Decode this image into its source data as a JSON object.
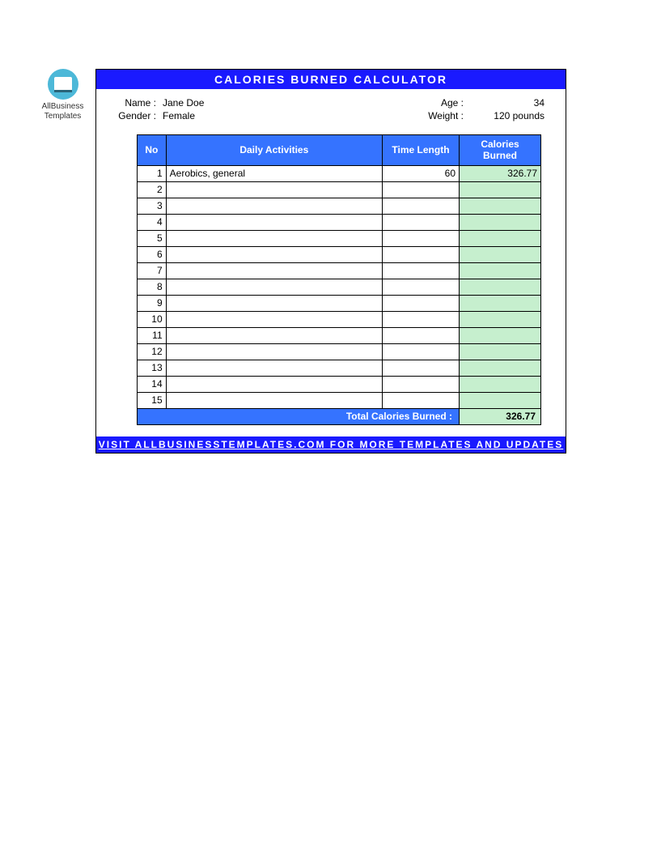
{
  "logo": {
    "line1": "AllBusiness",
    "line2": "Templates"
  },
  "title": "CALORIES BURNED CALCULATOR",
  "info": {
    "name_label": "Name :",
    "name_value": "Jane Doe",
    "gender_label": "Gender :",
    "gender_value": "Female",
    "age_label": "Age :",
    "age_value": "34",
    "weight_label": "Weight :",
    "weight_value": "120 pounds"
  },
  "table": {
    "headers": {
      "no": "No",
      "activity": "Daily Activities",
      "time": "Time Length",
      "calories": "Calories Burned"
    },
    "rows": [
      {
        "no": "1",
        "activity": "Aerobics, general",
        "time": "60",
        "calories": "326.77"
      },
      {
        "no": "2",
        "activity": "",
        "time": "",
        "calories": ""
      },
      {
        "no": "3",
        "activity": "",
        "time": "",
        "calories": ""
      },
      {
        "no": "4",
        "activity": "",
        "time": "",
        "calories": ""
      },
      {
        "no": "5",
        "activity": "",
        "time": "",
        "calories": ""
      },
      {
        "no": "6",
        "activity": "",
        "time": "",
        "calories": ""
      },
      {
        "no": "7",
        "activity": "",
        "time": "",
        "calories": ""
      },
      {
        "no": "8",
        "activity": "",
        "time": "",
        "calories": ""
      },
      {
        "no": "9",
        "activity": "",
        "time": "",
        "calories": ""
      },
      {
        "no": "10",
        "activity": "",
        "time": "",
        "calories": ""
      },
      {
        "no": "11",
        "activity": "",
        "time": "",
        "calories": ""
      },
      {
        "no": "12",
        "activity": "",
        "time": "",
        "calories": ""
      },
      {
        "no": "13",
        "activity": "",
        "time": "",
        "calories": ""
      },
      {
        "no": "14",
        "activity": "",
        "time": "",
        "calories": ""
      },
      {
        "no": "15",
        "activity": "",
        "time": "",
        "calories": ""
      }
    ],
    "total_label": "Total Calories Burned :",
    "total_value": "326.77"
  },
  "footer": "VISIT ALLBUSINESSTEMPLATES.COM FOR MORE TEMPLATES AND UPDATES",
  "colors": {
    "header_bg": "#1a1aff",
    "table_header_bg": "#3573ff",
    "calories_bg": "#c6efce",
    "logo_bg": "#4db8d8"
  }
}
